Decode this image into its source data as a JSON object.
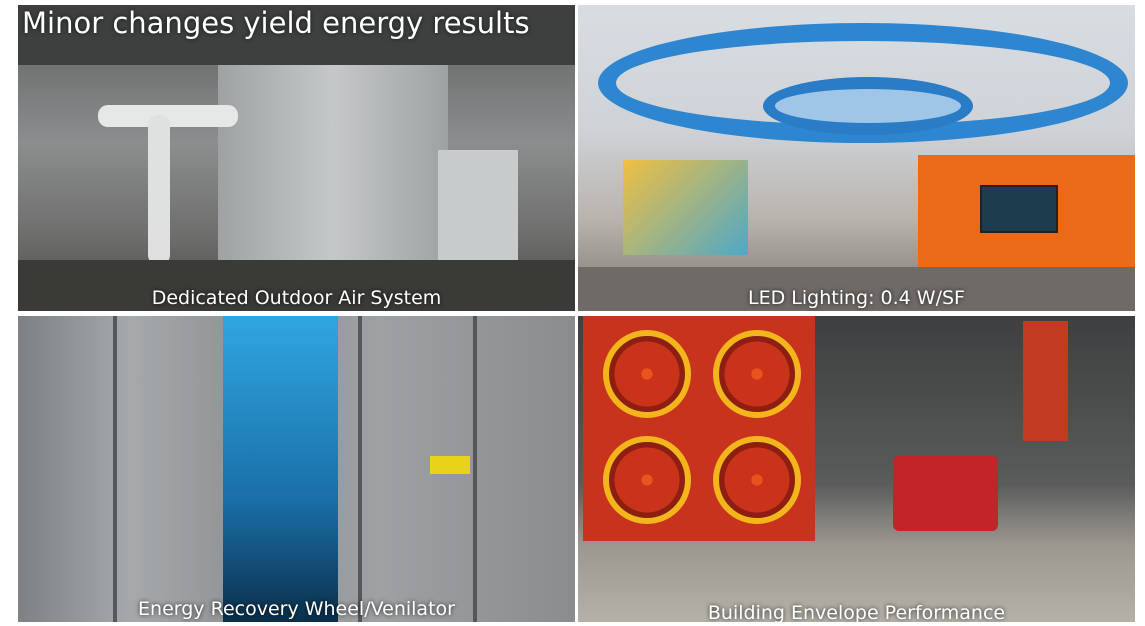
{
  "title": "Minor changes yield energy results",
  "panels": [
    {
      "caption": "Dedicated Outdoor Air System"
    },
    {
      "caption": "LED Lighting: 0.4 W/SF"
    },
    {
      "caption": "Energy Recovery Wheel/Venilator"
    },
    {
      "caption": "Building Envelope Performance"
    }
  ]
}
